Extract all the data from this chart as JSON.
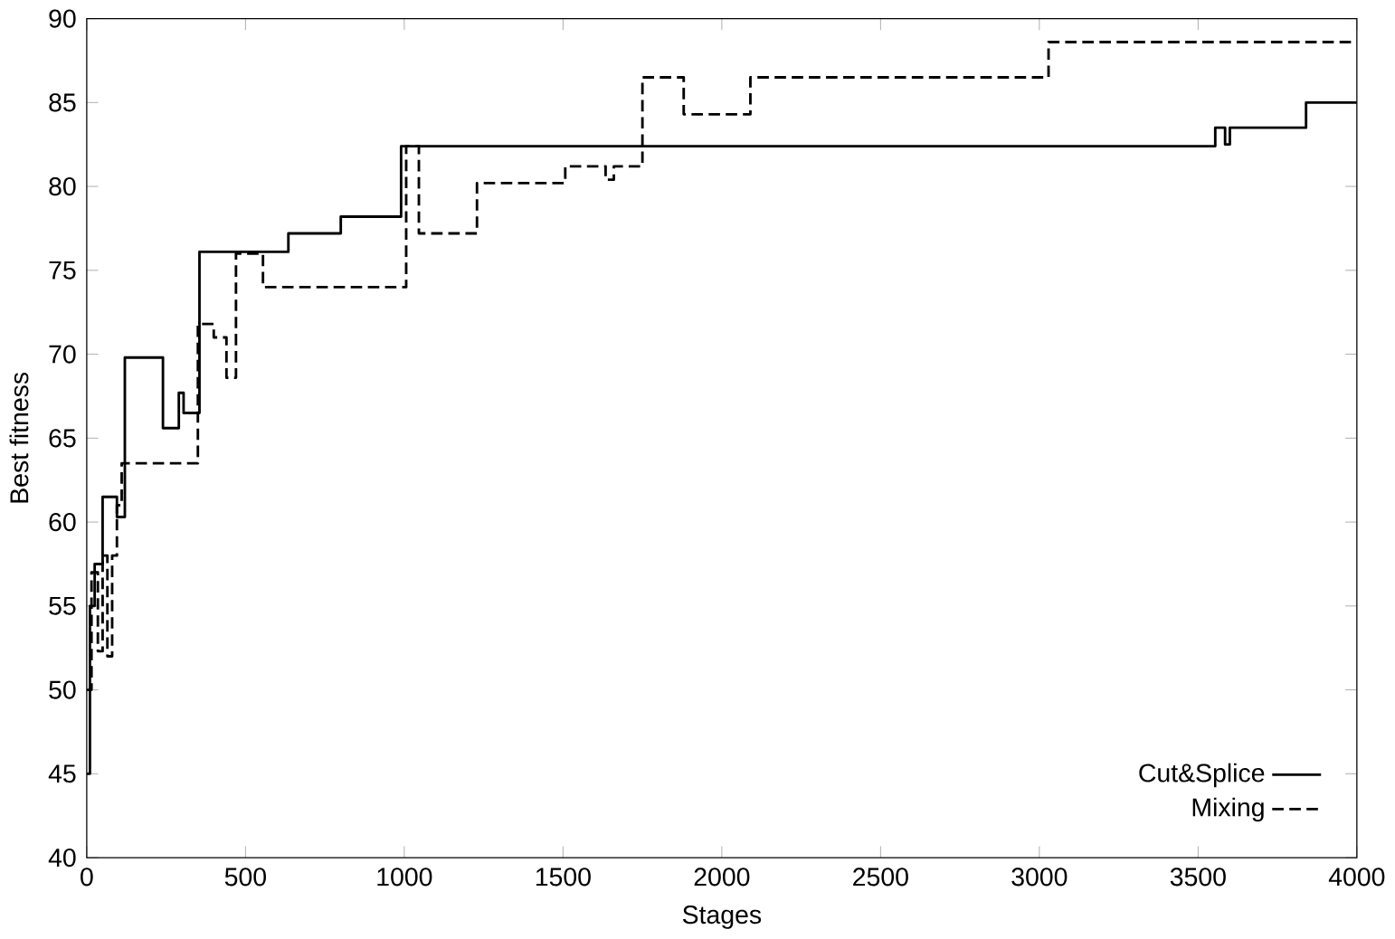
{
  "chart_data": {
    "type": "step",
    "xlabel": "Stages",
    "ylabel": "Best fitness",
    "xlim": [
      0,
      4000
    ],
    "ylim": [
      40,
      90
    ],
    "xticks": [
      0,
      500,
      1000,
      1500,
      2000,
      2500,
      3000,
      3500,
      4000
    ],
    "yticks": [
      40,
      45,
      50,
      55,
      60,
      65,
      70,
      75,
      80,
      85,
      90
    ],
    "grid": false,
    "legend": "bottom right",
    "series": [
      {
        "name": "Cut&Splice",
        "color": "#000000",
        "line_style": "solid",
        "x": [
          0,
          10,
          25,
          50,
          95,
          120,
          240,
          290,
          305,
          355,
          635,
          800,
          990,
          3554,
          3585,
          3600,
          3840,
          4000
        ],
        "values": [
          45,
          55,
          57.5,
          61.5,
          60.3,
          69.8,
          65.6,
          67.7,
          66.5,
          76.1,
          77.2,
          78.2,
          82.4,
          83.5,
          82.5,
          83.5,
          85,
          85
        ]
      },
      {
        "name": "Mixing",
        "color": "#000000",
        "line_style": "dashed",
        "x": [
          0,
          15,
          35,
          50,
          65,
          80,
          95,
          110,
          350,
          400,
          440,
          470,
          555,
          1006,
          1046,
          1229,
          1507,
          1634,
          1660,
          1750,
          1880,
          2090,
          3029,
          4000
        ],
        "values": [
          50,
          57,
          52.3,
          58,
          52,
          58,
          61,
          63.5,
          71.8,
          71,
          68.6,
          76,
          74,
          82.4,
          77.2,
          80.2,
          81.2,
          80.4,
          81.2,
          86.5,
          84.3,
          86.5,
          88.6,
          88.6
        ]
      }
    ]
  }
}
